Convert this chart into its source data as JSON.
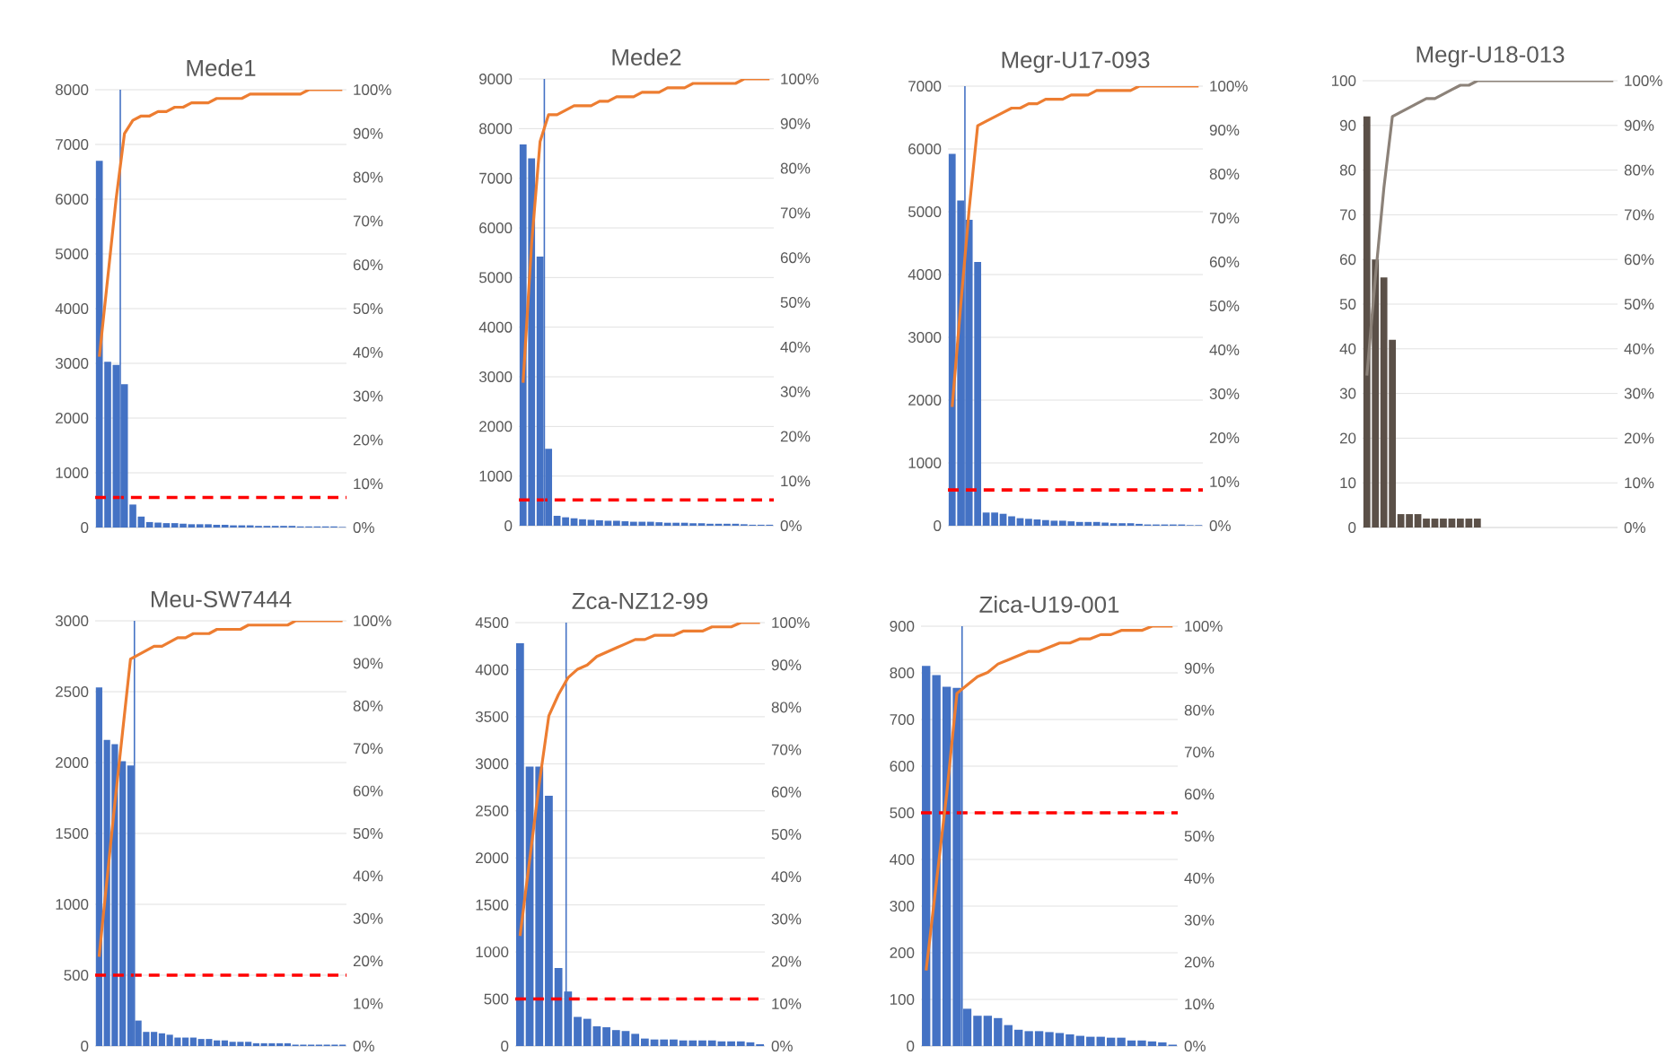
{
  "chart_data": [
    {
      "type": "bar",
      "title": "Mede1",
      "categories": [
        null,
        null,
        null,
        null,
        null,
        null,
        null,
        null,
        null,
        null,
        null,
        null,
        null,
        null,
        null,
        null,
        null,
        null,
        null,
        null,
        null,
        null,
        null,
        null,
        null,
        null,
        null,
        null,
        null,
        null
      ],
      "series": [
        {
          "color": "#4472c4",
          "values": [
            6700,
            3030,
            2970,
            2620,
            420,
            200,
            100,
            90,
            80,
            80,
            70,
            60,
            60,
            60,
            50,
            50,
            40,
            40,
            40,
            30,
            30,
            30,
            30,
            30,
            20,
            20,
            20,
            20,
            20,
            10
          ]
        },
        {
          "type": "line",
          "axis": "y2",
          "color": "#ed7d31",
          "values": [
            39,
            57,
            75,
            90,
            93,
            94,
            94,
            95,
            95,
            96,
            96,
            97,
            97,
            97,
            98,
            98,
            98,
            98,
            99,
            99,
            99,
            99,
            99,
            99,
            99,
            100,
            100,
            100,
            100,
            100
          ]
        }
      ],
      "ylim": [
        0,
        8000
      ],
      "yticks": [
        0,
        1000,
        2000,
        3000,
        4000,
        5000,
        6000,
        7000,
        8000
      ],
      "y2lim": [
        0,
        100
      ],
      "y2ticks": [
        {
          "value": 0,
          "label": "0%"
        },
        {
          "value": 10,
          "label": "10%"
        },
        {
          "value": 20,
          "label": "20%"
        },
        {
          "value": 30,
          "label": "30%"
        },
        {
          "value": 40,
          "label": "40%"
        },
        {
          "value": 50,
          "label": "50%"
        },
        {
          "value": 60,
          "label": "60%"
        },
        {
          "value": 70,
          "label": "70%"
        },
        {
          "value": 80,
          "label": "80%"
        },
        {
          "value": 90,
          "label": "90%"
        },
        {
          "value": 100,
          "label": "100%"
        }
      ],
      "grid": "y",
      "ref_lines": [
        {
          "axis": "y",
          "value": 550,
          "color": "#ff0000",
          "line_style": "dashed"
        }
      ]
    },
    {
      "type": "bar",
      "title": "Mede2",
      "categories": [
        null,
        null,
        null,
        null,
        null,
        null,
        null,
        null,
        null,
        null,
        null,
        null,
        null,
        null,
        null,
        null,
        null,
        null,
        null,
        null,
        null,
        null,
        null,
        null,
        null,
        null,
        null,
        null,
        null,
        null
      ],
      "series": [
        {
          "color": "#4472c4",
          "values": [
            7680,
            7400,
            5420,
            1550,
            200,
            170,
            150,
            130,
            120,
            110,
            100,
            100,
            90,
            80,
            80,
            80,
            70,
            60,
            60,
            60,
            50,
            50,
            40,
            40,
            40,
            40,
            30,
            20,
            20,
            20
          ]
        },
        {
          "type": "line",
          "axis": "y2",
          "color": "#ed7d31",
          "values": [
            32,
            63,
            86,
            92,
            92,
            93,
            94,
            94,
            94,
            95,
            95,
            96,
            96,
            96,
            97,
            97,
            97,
            98,
            98,
            98,
            99,
            99,
            99,
            99,
            99,
            99,
            100,
            100,
            100,
            100
          ]
        }
      ],
      "ylim": [
        0,
        9000
      ],
      "yticks": [
        0,
        1000,
        2000,
        3000,
        4000,
        5000,
        6000,
        7000,
        8000,
        9000
      ],
      "y2lim": [
        0,
        100
      ],
      "y2ticks": [
        {
          "value": 0,
          "label": "0%"
        },
        {
          "value": 10,
          "label": "10%"
        },
        {
          "value": 20,
          "label": "20%"
        },
        {
          "value": 30,
          "label": "30%"
        },
        {
          "value": 40,
          "label": "40%"
        },
        {
          "value": 50,
          "label": "50%"
        },
        {
          "value": 60,
          "label": "60%"
        },
        {
          "value": 70,
          "label": "70%"
        },
        {
          "value": 80,
          "label": "80%"
        },
        {
          "value": 90,
          "label": "90%"
        },
        {
          "value": 100,
          "label": "100%"
        }
      ],
      "grid": "y",
      "ref_lines": [
        {
          "axis": "y",
          "value": 520,
          "color": "#ff0000",
          "line_style": "dashed"
        }
      ]
    },
    {
      "type": "bar",
      "title": "Megr-U17-093",
      "categories": [
        null,
        null,
        null,
        null,
        null,
        null,
        null,
        null,
        null,
        null,
        null,
        null,
        null,
        null,
        null,
        null,
        null,
        null,
        null,
        null,
        null,
        null,
        null,
        null,
        null,
        null,
        null,
        null,
        null,
        null
      ],
      "series": [
        {
          "color": "#4472c4",
          "values": [
            5920,
            5180,
            4870,
            4200,
            210,
            210,
            190,
            150,
            120,
            110,
            100,
            90,
            80,
            80,
            70,
            60,
            60,
            60,
            50,
            40,
            40,
            40,
            30,
            20,
            20,
            20,
            20,
            20,
            10,
            10
          ]
        },
        {
          "type": "line",
          "axis": "y2",
          "color": "#ed7d31",
          "values": [
            27,
            50,
            72,
            91,
            92,
            93,
            94,
            95,
            95,
            96,
            96,
            97,
            97,
            97,
            98,
            98,
            98,
            99,
            99,
            99,
            99,
            99,
            100,
            100,
            100,
            100,
            100,
            100,
            100,
            100
          ]
        }
      ],
      "ylim": [
        0,
        7000
      ],
      "yticks": [
        0,
        1000,
        2000,
        3000,
        4000,
        5000,
        6000,
        7000
      ],
      "y2lim": [
        0,
        100
      ],
      "y2ticks": [
        {
          "value": 0,
          "label": "0%"
        },
        {
          "value": 10,
          "label": "10%"
        },
        {
          "value": 20,
          "label": "20%"
        },
        {
          "value": 30,
          "label": "30%"
        },
        {
          "value": 40,
          "label": "40%"
        },
        {
          "value": 50,
          "label": "50%"
        },
        {
          "value": 60,
          "label": "60%"
        },
        {
          "value": 70,
          "label": "70%"
        },
        {
          "value": 80,
          "label": "80%"
        },
        {
          "value": 90,
          "label": "90%"
        },
        {
          "value": 100,
          "label": "100%"
        }
      ],
      "grid": "y",
      "ref_lines": [
        {
          "axis": "y",
          "value": 570,
          "color": "#ff0000",
          "line_style": "dashed"
        }
      ]
    },
    {
      "type": "bar",
      "title": "Megr-U18-013",
      "categories": [
        null,
        null,
        null,
        null,
        null,
        null,
        null,
        null,
        null,
        null,
        null,
        null,
        null,
        null,
        null,
        null,
        null,
        null,
        null,
        null,
        null,
        null,
        null,
        null,
        null,
        null,
        null,
        null,
        null,
        null
      ],
      "series": [
        {
          "color": "#5b5048",
          "values": [
            92,
            60,
            56,
            42,
            3,
            3,
            3,
            2,
            2,
            2,
            2,
            2,
            2,
            2,
            null,
            null,
            null,
            null,
            null,
            null,
            null,
            null,
            null,
            null,
            null,
            null,
            null,
            null,
            null,
            null
          ]
        },
        {
          "type": "line",
          "axis": "y2",
          "color": "#8c8279",
          "values": [
            34,
            56,
            76,
            92,
            93,
            94,
            95,
            96,
            96,
            97,
            98,
            99,
            99,
            100,
            100,
            100,
            100,
            100,
            100,
            100,
            100,
            100,
            100,
            100,
            100,
            100,
            100,
            100,
            100,
            100
          ]
        }
      ],
      "ylim": [
        0,
        100
      ],
      "yticks": [
        0,
        10,
        20,
        30,
        40,
        50,
        60,
        70,
        80,
        90,
        100
      ],
      "y2lim": [
        0,
        100
      ],
      "y2ticks": [
        {
          "value": 0,
          "label": "0%"
        },
        {
          "value": 10,
          "label": "10%"
        },
        {
          "value": 20,
          "label": "20%"
        },
        {
          "value": 30,
          "label": "30%"
        },
        {
          "value": 40,
          "label": "40%"
        },
        {
          "value": 50,
          "label": "50%"
        },
        {
          "value": 60,
          "label": "60%"
        },
        {
          "value": 70,
          "label": "70%"
        },
        {
          "value": 80,
          "label": "80%"
        },
        {
          "value": 90,
          "label": "90%"
        },
        {
          "value": 100,
          "label": "100%"
        }
      ],
      "grid": "y"
    },
    {
      "type": "bar",
      "title": "Meu-SW7444",
      "categories": [
        null,
        null,
        null,
        null,
        null,
        null,
        null,
        null,
        null,
        null,
        null,
        null,
        null,
        null,
        null,
        null,
        null,
        null,
        null,
        null,
        null,
        null,
        null,
        null,
        null,
        null,
        null,
        null,
        null,
        null,
        null,
        null
      ],
      "series": [
        {
          "color": "#4472c4",
          "values": [
            2530,
            2160,
            2130,
            2010,
            1980,
            180,
            100,
            100,
            90,
            80,
            60,
            60,
            60,
            50,
            50,
            40,
            40,
            30,
            30,
            30,
            20,
            20,
            20,
            20,
            20,
            10,
            10,
            10,
            10,
            10,
            10,
            10
          ]
        },
        {
          "type": "line",
          "axis": "y2",
          "color": "#ed7d31",
          "values": [
            21,
            39,
            57,
            74,
            91,
            92,
            93,
            94,
            94,
            95,
            96,
            96,
            97,
            97,
            97,
            98,
            98,
            98,
            98,
            99,
            99,
            99,
            99,
            99,
            99,
            100,
            100,
            100,
            100,
            100,
            100,
            100
          ]
        }
      ],
      "ylim": [
        0,
        3000
      ],
      "yticks": [
        0,
        500,
        1000,
        1500,
        2000,
        2500,
        3000
      ],
      "y2lim": [
        0,
        100
      ],
      "y2ticks": [
        {
          "value": 0,
          "label": "0%"
        },
        {
          "value": 10,
          "label": "10%"
        },
        {
          "value": 20,
          "label": "20%"
        },
        {
          "value": 30,
          "label": "30%"
        },
        {
          "value": 40,
          "label": "40%"
        },
        {
          "value": 50,
          "label": "50%"
        },
        {
          "value": 60,
          "label": "60%"
        },
        {
          "value": 70,
          "label": "70%"
        },
        {
          "value": 80,
          "label": "80%"
        },
        {
          "value": 90,
          "label": "90%"
        },
        {
          "value": 100,
          "label": "100%"
        }
      ],
      "grid": "y",
      "ref_lines": [
        {
          "axis": "y",
          "value": 500,
          "color": "#ff0000",
          "line_style": "dashed"
        }
      ]
    },
    {
      "type": "bar",
      "title": "Zca-NZ12-99",
      "categories": [
        null,
        null,
        null,
        null,
        null,
        null,
        null,
        null,
        null,
        null,
        null,
        null,
        null,
        null,
        null,
        null,
        null,
        null,
        null,
        null,
        null,
        null,
        null,
        null,
        null,
        null
      ],
      "series": [
        {
          "color": "#4472c4",
          "values": [
            4280,
            2970,
            2970,
            2660,
            830,
            580,
            310,
            290,
            210,
            200,
            170,
            160,
            130,
            80,
            70,
            70,
            70,
            60,
            60,
            60,
            60,
            50,
            50,
            50,
            40,
            20
          ]
        },
        {
          "type": "line",
          "axis": "y2",
          "color": "#ed7d31",
          "values": [
            26,
            44,
            62,
            78,
            83,
            87,
            89,
            90,
            92,
            93,
            94,
            95,
            96,
            96,
            97,
            97,
            97,
            98,
            98,
            98,
            99,
            99,
            99,
            100,
            100,
            100
          ]
        }
      ],
      "ylim": [
        0,
        4500
      ],
      "yticks": [
        0,
        500,
        1000,
        1500,
        2000,
        2500,
        3000,
        3500,
        4000,
        4500
      ],
      "y2lim": [
        0,
        100
      ],
      "y2ticks": [
        {
          "value": 0,
          "label": "0%"
        },
        {
          "value": 10,
          "label": "10%"
        },
        {
          "value": 20,
          "label": "20%"
        },
        {
          "value": 30,
          "label": "30%"
        },
        {
          "value": 40,
          "label": "40%"
        },
        {
          "value": 50,
          "label": "50%"
        },
        {
          "value": 60,
          "label": "60%"
        },
        {
          "value": 70,
          "label": "70%"
        },
        {
          "value": 80,
          "label": "80%"
        },
        {
          "value": 90,
          "label": "90%"
        },
        {
          "value": 100,
          "label": "100%"
        }
      ],
      "grid": "y",
      "ref_lines": [
        {
          "axis": "y",
          "value": 500,
          "color": "#ff0000",
          "line_style": "dashed"
        }
      ]
    },
    {
      "type": "bar",
      "title": "Zica-U19-001",
      "categories": [
        null,
        null,
        null,
        null,
        null,
        null,
        null,
        null,
        null,
        null,
        null,
        null,
        null,
        null,
        null,
        null,
        null,
        null,
        null,
        null,
        null,
        null,
        null,
        null,
        null
      ],
      "series": [
        {
          "color": "#4472c4",
          "values": [
            815,
            795,
            770,
            768,
            80,
            65,
            65,
            60,
            45,
            35,
            32,
            32,
            30,
            28,
            25,
            22,
            20,
            20,
            18,
            18,
            12,
            12,
            10,
            8,
            3
          ]
        },
        {
          "type": "line",
          "axis": "y2",
          "color": "#ed7d31",
          "values": [
            18,
            39,
            60,
            84,
            86,
            88,
            89,
            91,
            92,
            93,
            94,
            94,
            95,
            96,
            96,
            97,
            97,
            98,
            98,
            99,
            99,
            99,
            100,
            100,
            100
          ]
        }
      ],
      "ylim": [
        0,
        900
      ],
      "yticks": [
        0,
        100,
        200,
        300,
        400,
        500,
        600,
        700,
        800,
        900
      ],
      "y2lim": [
        0,
        100
      ],
      "y2ticks": [
        {
          "value": 0,
          "label": "0%"
        },
        {
          "value": 10,
          "label": "10%"
        },
        {
          "value": 20,
          "label": "20%"
        },
        {
          "value": 30,
          "label": "30%"
        },
        {
          "value": 40,
          "label": "40%"
        },
        {
          "value": 50,
          "label": "50%"
        },
        {
          "value": 60,
          "label": "60%"
        },
        {
          "value": 70,
          "label": "70%"
        },
        {
          "value": 80,
          "label": "80%"
        },
        {
          "value": 90,
          "label": "90%"
        },
        {
          "value": 100,
          "label": "100%"
        }
      ],
      "grid": "y",
      "ref_lines": [
        {
          "axis": "y",
          "value": 500,
          "color": "#ff0000",
          "line_style": "dashed"
        }
      ]
    }
  ]
}
